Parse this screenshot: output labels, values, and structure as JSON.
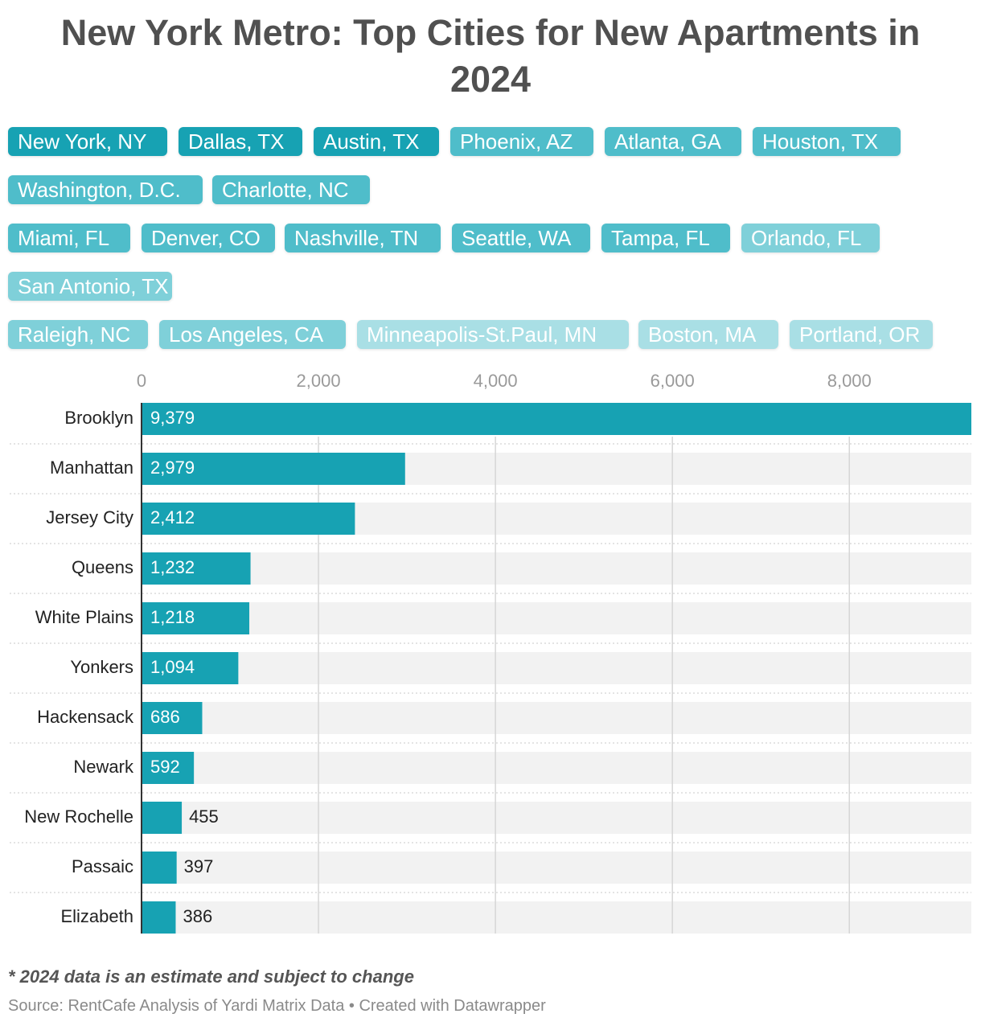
{
  "colors": {
    "bar": "#17a2b3",
    "track": "#f2f2f2",
    "grid": "#d6d6d6",
    "tab_strong": "#17a2b3",
    "tab_medium": "#4fbdca",
    "tab_light": "#7fd0d9",
    "tab_faint": "#a9dfe5"
  },
  "chart_data": {
    "type": "bar",
    "orientation": "horizontal",
    "title": "New York Metro: Top Cities for New Apartments in 2024",
    "categories": [
      "Brooklyn",
      "Manhattan",
      "Jersey City",
      "Queens",
      "White Plains",
      "Yonkers",
      "Hackensack",
      "Newark",
      "New Rochelle",
      "Passaic",
      "Elizabeth"
    ],
    "values": [
      9379,
      2979,
      2412,
      1232,
      1218,
      1094,
      686,
      592,
      455,
      397,
      386
    ],
    "value_labels": [
      "9,379",
      "2,979",
      "2,412",
      "1,232",
      "1,218",
      "1,094",
      "686",
      "592",
      "455",
      "397",
      "386"
    ],
    "xlim": [
      0,
      9379
    ],
    "x_ticks": [
      0,
      2000,
      4000,
      6000,
      8000
    ],
    "x_tick_labels": [
      "0",
      "2,000",
      "4,000",
      "6,000",
      "8,000"
    ],
    "xlabel": "",
    "ylabel": "",
    "grid": true
  },
  "city_tabs": [
    {
      "label": "New York, NY",
      "shade": "strong"
    },
    {
      "label": "Dallas, TX",
      "shade": "strong"
    },
    {
      "label": "Austin, TX",
      "shade": "strong"
    },
    {
      "label": "Phoenix, AZ",
      "shade": "medium"
    },
    {
      "label": "Atlanta, GA",
      "shade": "medium"
    },
    {
      "label": "Houston, TX",
      "shade": "medium"
    },
    {
      "label": "Washington, D.C.",
      "shade": "medium"
    },
    {
      "label": "Charlotte, NC",
      "shade": "medium"
    },
    {
      "label": "Miami, FL",
      "shade": "medium"
    },
    {
      "label": "Denver, CO",
      "shade": "medium"
    },
    {
      "label": "Nashville, TN",
      "shade": "medium"
    },
    {
      "label": "Seattle, WA",
      "shade": "medium"
    },
    {
      "label": "Tampa, FL",
      "shade": "medium"
    },
    {
      "label": "Orlando, FL",
      "shade": "light"
    },
    {
      "label": "San Antonio, TX",
      "shade": "light"
    },
    {
      "label": "Raleigh, NC",
      "shade": "light"
    },
    {
      "label": "Los Angeles, CA",
      "shade": "light"
    },
    {
      "label": "Minneapolis-St.Paul, MN",
      "shade": "faint"
    },
    {
      "label": "Boston, MA",
      "shade": "faint"
    },
    {
      "label": "Portland, OR",
      "shade": "faint"
    }
  ],
  "footnote": "* 2024 data is an estimate and subject to change",
  "source": "Source: RentCafe Analysis of Yardi Matrix Data • Created with Datawrapper"
}
